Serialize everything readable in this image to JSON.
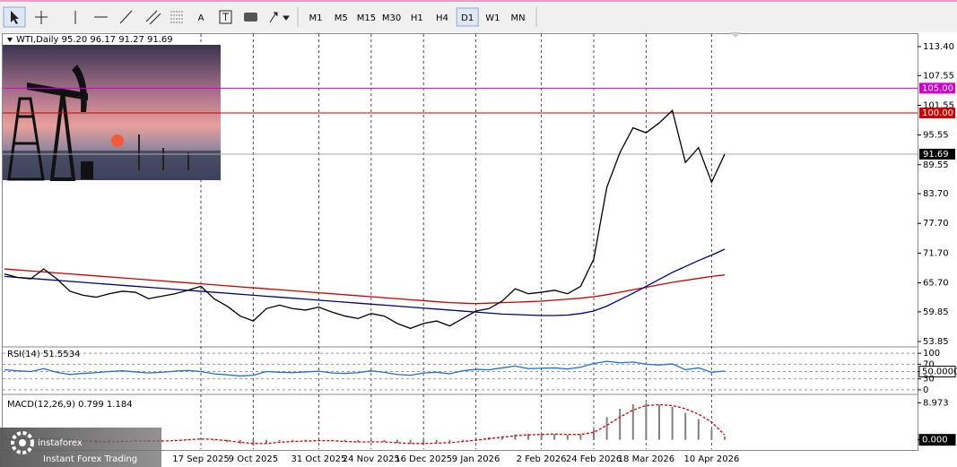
{
  "toolbar": {
    "text_tool": "A",
    "timeframes": [
      "M1",
      "M5",
      "M15",
      "M30",
      "H1",
      "H4",
      "D1",
      "W1",
      "MN"
    ],
    "active": "D1"
  },
  "watermark": {
    "brand": "instaforex",
    "tagline": "Instant Forex Trading"
  },
  "chart_data": [
    {
      "type": "line",
      "title": "WTI,Daily  95.20 96.17 91.27 91.69",
      "categories": [
        null,
        null,
        null,
        null,
        null,
        null,
        null,
        null,
        null,
        null,
        null,
        null,
        null,
        null,
        null,
        "17 Sep 2025",
        null,
        null,
        null,
        "9 Oct 2025",
        null,
        null,
        null,
        null,
        "31 Oct 2025",
        null,
        null,
        null,
        "24 Nov 2025",
        null,
        null,
        null,
        "16 Dec 2025",
        null,
        null,
        null,
        "9 Jan 2026",
        null,
        null,
        null,
        null,
        "2 Feb 2026",
        null,
        null,
        null,
        "24 Feb 2026",
        null,
        null,
        null,
        "18 Mar 2026",
        null,
        null,
        null,
        null,
        "10 Apr 2026",
        null
      ],
      "series": [
        {
          "color": "#cc0000",
          "values": [
            68.5,
            68.3,
            68.1,
            67.9,
            67.7,
            67.5,
            67.3,
            67.1,
            66.9,
            66.7,
            66.5,
            66.3,
            66.1,
            65.9,
            65.7,
            65.5,
            65.3,
            65.1,
            64.9,
            64.7,
            64.5,
            64.3,
            64.1,
            63.9,
            63.7,
            63.5,
            63.3,
            63.1,
            62.9,
            62.7,
            62.5,
            62.3,
            62.1,
            61.9,
            61.7,
            61.6,
            61.5,
            61.6,
            61.7,
            61.8,
            61.9,
            62.0,
            62.2,
            62.4,
            62.6,
            62.9,
            63.3,
            63.8,
            64.3,
            64.8,
            65.3,
            65.8,
            66.2,
            66.6,
            67.0,
            67.3
          ]
        },
        {
          "color": "#000080",
          "values": [
            67.0,
            66.8,
            66.6,
            66.4,
            66.2,
            66.0,
            65.8,
            65.6,
            65.4,
            65.2,
            65.0,
            64.8,
            64.6,
            64.4,
            64.2,
            64.0,
            63.8,
            63.6,
            63.4,
            63.2,
            63.0,
            62.8,
            62.6,
            62.4,
            62.2,
            62.0,
            61.8,
            61.6,
            61.4,
            61.2,
            61.0,
            60.8,
            60.6,
            60.4,
            60.2,
            60.0,
            59.8,
            59.6,
            59.4,
            59.3,
            59.2,
            59.1,
            59.1,
            59.2,
            59.5,
            60.0,
            61.0,
            62.3,
            63.6,
            65.0,
            66.4,
            67.8,
            69.0,
            70.2,
            71.3,
            72.5
          ]
        },
        {
          "color": "#000000",
          "values": [
            67.5,
            66.8,
            66.5,
            68.5,
            66.5,
            64.0,
            63.2,
            62.8,
            63.5,
            64.0,
            63.8,
            62.5,
            63.0,
            63.5,
            64.2,
            65.0,
            62.5,
            61.0,
            59.0,
            58.0,
            60.5,
            61.2,
            60.5,
            60.2,
            60.8,
            59.8,
            59.0,
            58.5,
            59.5,
            59.0,
            57.5,
            56.5,
            57.5,
            58.0,
            57.0,
            58.5,
            60.0,
            60.5,
            62.0,
            64.5,
            63.5,
            63.8,
            64.2,
            63.5,
            65.0,
            70.5,
            85.0,
            92.0,
            97.0,
            96.0,
            98.0,
            100.5,
            90.0,
            93.0,
            86.0,
            91.69
          ]
        }
      ],
      "ylim": [
        52.95,
        115.93
      ],
      "yticks": [
        {
          "value": 113.4,
          "label": "113.40"
        },
        107.55,
        101.55,
        95.55,
        89.55,
        {
          "value": 83.7,
          "label": "83.70"
        },
        {
          "value": 77.7,
          "label": "77.70"
        },
        {
          "value": 71.7,
          "label": "71.70"
        },
        {
          "value": 65.7,
          "label": "65.70"
        },
        59.85,
        53.85
      ],
      "grid": "vertical",
      "levels": [
        {
          "value": 105,
          "label": "105.00",
          "color": "#cc00cc"
        },
        {
          "value": 100,
          "label": "100.00",
          "color": "#cc0000"
        }
      ],
      "last_price": 91.69
    },
    {
      "type": "line",
      "title": "RSI(14) 51.5534",
      "series": [
        {
          "color": "#1e6fd0",
          "values": [
            55,
            52,
            50,
            58,
            48,
            42,
            45,
            47,
            50,
            52,
            49,
            46,
            48,
            51,
            53,
            50,
            44,
            41,
            38,
            40,
            50,
            48,
            47,
            49,
            51,
            46,
            45,
            47,
            52,
            48,
            42,
            40,
            46,
            48,
            44,
            52,
            56,
            55,
            60,
            65,
            58,
            59,
            60,
            57,
            62,
            72,
            78,
            74,
            76,
            70,
            68,
            71,
            55,
            60,
            48,
            51.5534
          ]
        }
      ],
      "ylim": [
        -10,
        115
      ],
      "yticks": [
        100,
        70,
        {
          "value": 50,
          "label": "50.0000"
        },
        30,
        0
      ],
      "grid": "horizontal",
      "boxed_label_ticks": true
    },
    {
      "type": "bar",
      "title": "MACD(12,26,9) 0.799 1.184",
      "series": [
        {
          "style": "bar",
          "color": "#808080",
          "values": [
            0.3,
            0.2,
            0.1,
            0.4,
            0.2,
            -0.3,
            -0.6,
            -0.7,
            -0.5,
            -0.3,
            -0.2,
            -0.3,
            -0.3,
            -0.1,
            0.1,
            0.3,
            -0.2,
            -0.6,
            -1.0,
            -1.3,
            -0.8,
            -0.4,
            -0.3,
            -0.3,
            -0.1,
            -0.3,
            -0.5,
            -0.6,
            -0.4,
            -0.5,
            -0.8,
            -1.0,
            -0.9,
            -0.7,
            -0.6,
            -0.2,
            0.3,
            0.6,
            0.9,
            1.3,
            1.4,
            1.4,
            1.4,
            1.2,
            1.3,
            2.5,
            5.5,
            7.5,
            8.6,
            8.9,
            8.5,
            8.0,
            6.5,
            5.0,
            2.5,
            0.799
          ]
        },
        {
          "style": "dashed",
          "color": "#cc0000",
          "values": [
            0.3,
            0.3,
            0.2,
            0.3,
            0.3,
            0.1,
            -0.2,
            -0.4,
            -0.5,
            -0.4,
            -0.3,
            -0.3,
            -0.3,
            -0.2,
            0,
            0.2,
            0.1,
            -0.2,
            -0.6,
            -0.9,
            -0.9,
            -0.6,
            -0.4,
            -0.3,
            -0.2,
            -0.2,
            -0.4,
            -0.5,
            -0.5,
            -0.5,
            -0.7,
            -0.9,
            -0.9,
            -0.8,
            -0.7,
            -0.4,
            -0.1,
            0.3,
            0.6,
            1.0,
            1.2,
            1.3,
            1.4,
            1.3,
            1.3,
            1.8,
            3.5,
            5.5,
            7.2,
            8.3,
            8.5,
            8.3,
            7.5,
            6.2,
            4.3,
            1.184
          ]
        }
      ],
      "ylim": [
        -2.24,
        10.77
      ],
      "yticks": [
        8.973,
        {
          "value": 0,
          "label": "0.000"
        }
      ],
      "boxed_label_ticks": true
    }
  ]
}
